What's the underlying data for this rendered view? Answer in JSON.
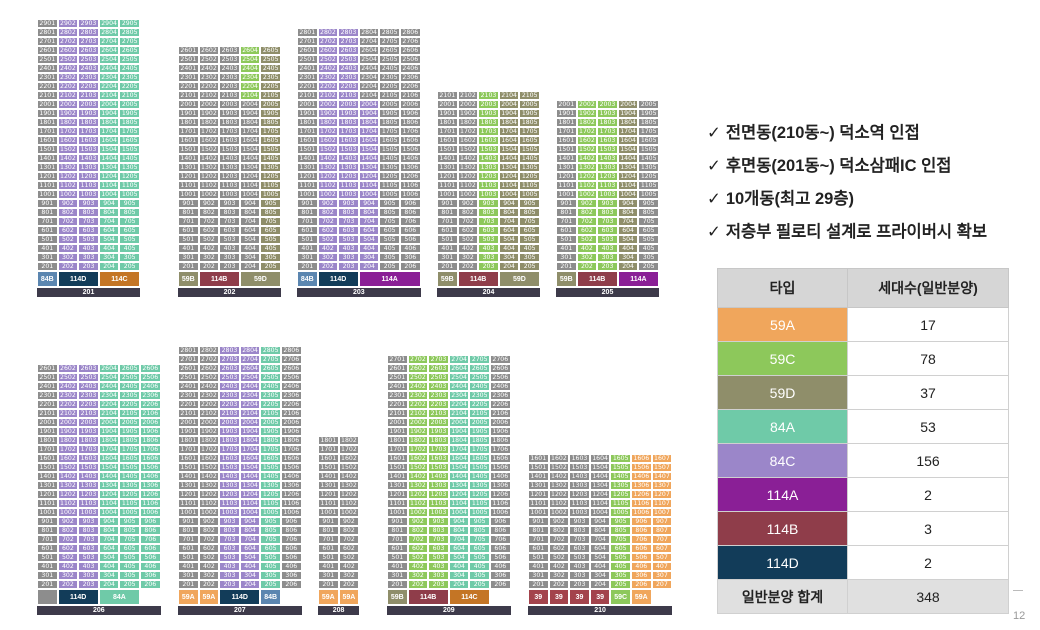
{
  "buildings": [
    {
      "name": "201",
      "floors": 29,
      "cols": [
        "01",
        "02",
        "03",
        "04",
        "05"
      ],
      "block_from": 27,
      "colors": {
        "default": "#8d8d8d",
        "01": "#8d8d8d",
        "02": "#9b86c9",
        "03": "#9b86c9",
        "04": "#6fcaa8",
        "05": "#6fcaa8"
      },
      "overrides": {
        "2902": {
          "c": "#123c59"
        },
        "2903": {
          "c": "#ffffff",
          "t": "#888888",
          "box": true
        },
        "2904": {
          "c": "#ffffff",
          "t": "#888888",
          "box": true
        },
        "2905": {
          "c": "none"
        },
        "2901": {
          "c": "none"
        },
        "2801": {
          "c": "none"
        },
        "2701": {
          "c": "none"
        },
        "2804": {
          "c": "#9b86c9"
        },
        "2805": {
          "c": "#9b86c9"
        },
        "2704": {
          "c": "#8dc85b"
        },
        "2705": {
          "c": "#8dc85b"
        },
        "2602": {
          "c": "#8d8d8d"
        },
        "2603": {
          "c": "#8d8d8d"
        },
        "2604": {
          "c": "#8d8d8d"
        },
        "2605": {
          "c": "#8d8d8d"
        }
      },
      "low_overrides": {
        "1702": "#9b86c9",
        "1802": "#9b86c9",
        "1903": "#9b86c9"
      },
      "units": [
        {
          "label": "84B",
          "color": "#5b86b0",
          "w": 1,
          "row": 0,
          "col": 0
        },
        {
          "label": "114D",
          "color": "#123c59",
          "w": 2,
          "row": 1,
          "col": 1
        },
        {
          "label": "114C",
          "color": "#c47525",
          "w": 2,
          "row": 1,
          "col": 3
        },
        {
          "label": "84C",
          "color": "#9b86c9",
          "w": 1,
          "row": 0,
          "col": 1
        },
        {
          "label": "84C",
          "color": "#9b86c9",
          "w": 1,
          "row": 0,
          "col": 2
        },
        {
          "label": "84A",
          "color": "#6fcaa8",
          "w": 1,
          "row": 0,
          "col": 3
        },
        {
          "label": "84A",
          "color": "#6fcaa8",
          "w": 1,
          "row": 0,
          "col": 4
        }
      ]
    },
    {
      "name": "202",
      "floors": 26
    },
    {
      "name": "203",
      "floors": 28
    },
    {
      "name": "204",
      "floors": 21
    },
    {
      "name": "205",
      "floors": 20
    },
    {
      "name": "206",
      "floors": 26
    },
    {
      "name": "207",
      "floors": 28
    },
    {
      "name": "208",
      "floors": 18
    },
    {
      "name": "209",
      "floors": 27
    },
    {
      "name": "210",
      "floors": 16
    }
  ],
  "bullets": [
    "전면동(210동~) 덕소역 인접",
    "후면동(201동~) 덕소삼패IC 인접",
    "10개동(최고 29층)",
    "저층부 필로티 설계로 프라이버시 확보"
  ],
  "check_mark": "✓",
  "legend": {
    "headers": [
      "타입",
      "세대수(일반분양)"
    ],
    "rows": [
      {
        "type": "59A",
        "count": "17",
        "color": "#f0a65c"
      },
      {
        "type": "59C",
        "count": "78",
        "color": "#8dc85b"
      },
      {
        "type": "59D",
        "count": "37",
        "color": "#8f8e6a"
      },
      {
        "type": "84A",
        "count": "53",
        "color": "#6fcaa8"
      },
      {
        "type": "84C",
        "count": "156",
        "color": "#9b86c9"
      },
      {
        "type": "114A",
        "count": "2",
        "color": "#8a1f96"
      },
      {
        "type": "114B",
        "count": "3",
        "color": "#8f3d4a"
      },
      {
        "type": "114D",
        "count": "2",
        "color": "#123c59"
      }
    ],
    "total_label": "일반분양 합계",
    "total_count": "348"
  },
  "page_number": "12"
}
